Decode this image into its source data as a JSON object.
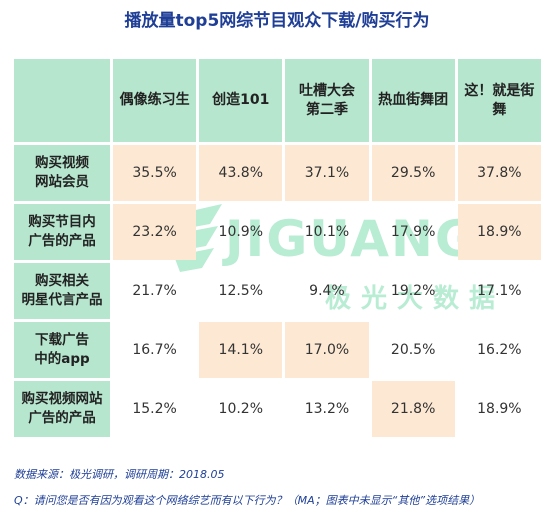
{
  "title": "播放量top5网综节目观众下载/购买行为",
  "watermark": {
    "brand": "JIGUANG",
    "sub": "极光大数据"
  },
  "chart_data": {
    "type": "table",
    "title": "播放量top5网综节目观众下载/购买行为",
    "columns": [
      {
        "label": "偶像练习生"
      },
      {
        "label": "创造101"
      },
      {
        "label": "吐槽大会\n第二季"
      },
      {
        "label": "热血街舞团"
      },
      {
        "label": "这！就是街\n舞"
      }
    ],
    "rows": [
      {
        "label": "购买视频\n网站会员",
        "values": [
          "35.5%",
          "43.8%",
          "37.1%",
          "29.5%",
          "37.8%"
        ],
        "highlight": [
          true,
          true,
          true,
          true,
          true
        ]
      },
      {
        "label": "购买节目内\n广告的产品",
        "values": [
          "23.2%",
          "10.9%",
          "10.1%",
          "17.9%",
          "18.9%"
        ],
        "highlight": [
          true,
          false,
          false,
          false,
          true
        ]
      },
      {
        "label": "购买相关\n明星代言产品",
        "values": [
          "21.7%",
          "12.5%",
          "9.4%",
          "19.2%",
          "17.1%"
        ],
        "highlight": [
          false,
          false,
          false,
          false,
          false
        ]
      },
      {
        "label": "下载广告\n中的app",
        "values": [
          "16.7%",
          "14.1%",
          "17.0%",
          "20.5%",
          "16.2%"
        ],
        "highlight": [
          false,
          true,
          true,
          false,
          false
        ]
      },
      {
        "label": "购买视频网站\n广告的产品",
        "values": [
          "15.2%",
          "10.2%",
          "13.2%",
          "21.8%",
          "18.9%"
        ],
        "highlight": [
          false,
          false,
          false,
          true,
          false
        ]
      }
    ],
    "colors": {
      "header": "#b7e6cf",
      "highlight": "#fde9d3",
      "title": "#1f3f97"
    }
  },
  "footer": {
    "source": "数据来源：极光调研，调研周期：2018.05",
    "question": "Q：请问您是否有因为观看这个网络综艺而有以下行为？（MA；图表中未显示“其他”选项结果）"
  }
}
